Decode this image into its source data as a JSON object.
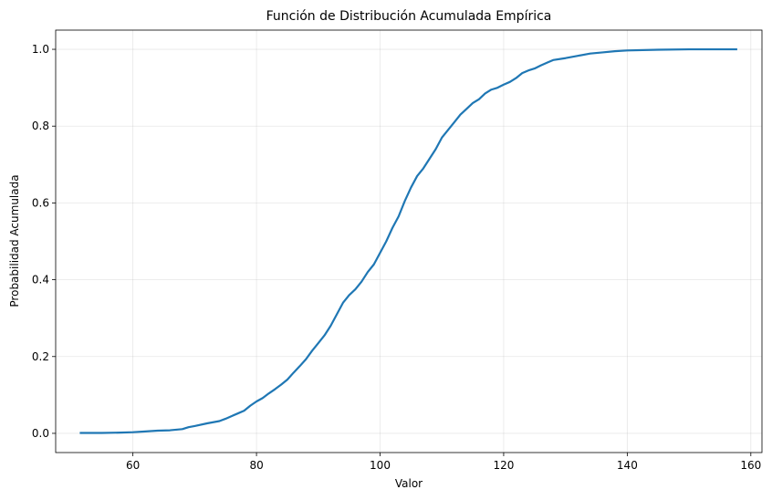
{
  "chart_data": {
    "type": "line",
    "title": "Función de Distribución Acumulada Empírica",
    "xlabel": "Valor",
    "ylabel": "Probabilidad Acumulada",
    "xlim": [
      47.5,
      161.8
    ],
    "ylim": [
      -0.05,
      1.05
    ],
    "xticks": [
      60,
      80,
      100,
      120,
      140,
      160
    ],
    "yticks": [
      0.0,
      0.2,
      0.4,
      0.6,
      0.8,
      1.0
    ],
    "xtick_labels": [
      "60",
      "80",
      "100",
      "120",
      "140",
      "160"
    ],
    "ytick_labels": [
      "0.0",
      "0.2",
      "0.4",
      "0.6",
      "0.8",
      "1.0"
    ],
    "grid": true,
    "color": "#1f77b4",
    "series": [
      {
        "x": [
          51.4,
          55,
          58,
          60,
          62,
          64,
          66,
          68,
          69,
          70,
          72,
          74,
          75,
          76,
          77,
          78,
          79,
          80,
          81,
          82,
          83,
          84,
          85,
          86,
          87,
          88,
          89,
          90,
          91,
          92,
          93,
          94,
          95,
          96,
          97,
          98,
          99,
          100,
          101,
          102,
          103,
          104,
          105,
          106,
          107,
          108,
          109,
          110,
          111,
          112,
          113,
          114,
          115,
          116,
          117,
          118,
          119,
          120,
          121,
          122,
          123,
          124,
          125,
          126,
          127,
          128,
          130,
          132,
          134,
          136,
          138,
          140,
          145,
          150,
          157.8
        ],
        "y": [
          0.001,
          0.001,
          0.002,
          0.003,
          0.005,
          0.007,
          0.008,
          0.011,
          0.016,
          0.019,
          0.026,
          0.032,
          0.038,
          0.045,
          0.052,
          0.059,
          0.072,
          0.083,
          0.092,
          0.104,
          0.115,
          0.127,
          0.14,
          0.158,
          0.175,
          0.193,
          0.215,
          0.235,
          0.255,
          0.28,
          0.31,
          0.34,
          0.36,
          0.375,
          0.395,
          0.42,
          0.44,
          0.47,
          0.5,
          0.535,
          0.565,
          0.605,
          0.64,
          0.67,
          0.69,
          0.715,
          0.74,
          0.77,
          0.79,
          0.81,
          0.83,
          0.845,
          0.86,
          0.87,
          0.885,
          0.895,
          0.9,
          0.908,
          0.915,
          0.925,
          0.938,
          0.945,
          0.95,
          0.958,
          0.965,
          0.972,
          0.977,
          0.983,
          0.989,
          0.992,
          0.995,
          0.997,
          0.999,
          1.0,
          1.0
        ]
      }
    ]
  }
}
